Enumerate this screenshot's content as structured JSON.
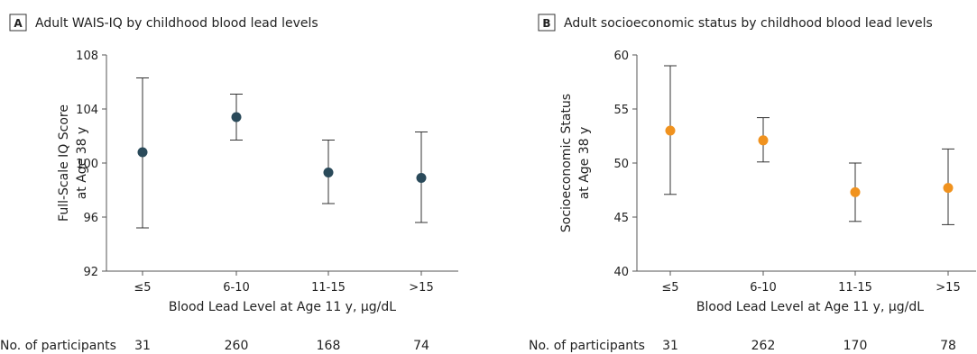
{
  "chart_data": [
    {
      "type": "scatter",
      "panel_label": "A",
      "title": "Adult WAIS-IQ by childhood blood lead levels",
      "ylabel_lines": [
        "Full-Scale IQ Score",
        "at Age 38 y"
      ],
      "xlabel": "Blood Lead Level at Age 11 y, µg/dL",
      "categories": [
        "≤5",
        "6-10",
        "11-15",
        ">15"
      ],
      "ylim": [
        92,
        108
      ],
      "yticks": [
        92,
        96,
        100,
        104,
        108
      ],
      "point_color": "#2a4a5a",
      "series": [
        {
          "values": [
            100.8,
            103.4,
            99.3,
            98.9
          ],
          "lower": [
            95.2,
            101.7,
            97.0,
            95.6
          ],
          "upper": [
            106.3,
            105.1,
            101.7,
            102.3
          ]
        }
      ],
      "participants_label": "No. of participants",
      "participants": [
        "31",
        "260",
        "168",
        "74"
      ]
    },
    {
      "type": "scatter",
      "panel_label": "B",
      "title": "Adult socioeconomic status by childhood blood lead levels",
      "ylabel_lines": [
        "Socioeconomic Status",
        "at Age 38 y"
      ],
      "xlabel": "Blood Lead Level at Age 11 y, µg/dL",
      "categories": [
        "≤5",
        "6-10",
        "11-15",
        ">15"
      ],
      "ylim": [
        40,
        60
      ],
      "yticks": [
        40,
        45,
        50,
        55,
        60
      ],
      "point_color": "#f0921e",
      "series": [
        {
          "values": [
            53.0,
            52.1,
            47.3,
            47.7
          ],
          "lower": [
            47.1,
            50.1,
            44.6,
            44.3
          ],
          "upper": [
            59.0,
            54.2,
            50.0,
            51.3
          ]
        }
      ],
      "participants_label": "No. of participants",
      "participants": [
        "31",
        "262",
        "170",
        "78"
      ]
    }
  ]
}
